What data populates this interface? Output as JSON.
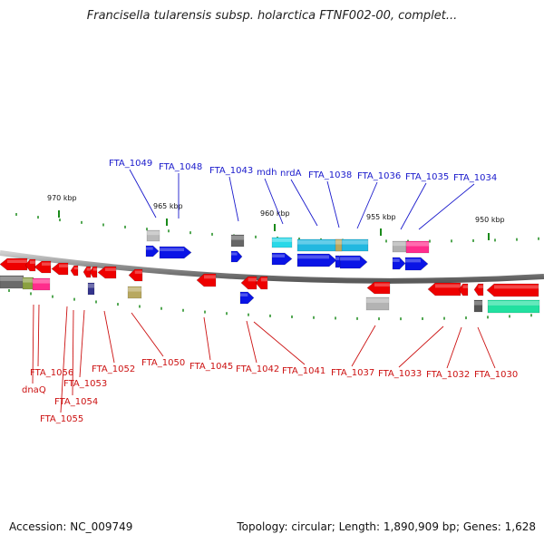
{
  "title": "Francisella tularensis subsp. holarctica FTNF002-00, complet...",
  "footer": {
    "accession": "Accession: NC_009749",
    "summary": "Topology: circular; Length: 1,890,909 bp; Genes: 1,628"
  },
  "colors": {
    "forward_label": "#1a1acc",
    "reverse_label": "#cc1111",
    "forward_gene": "#0a14e6",
    "reverse_gene": "#ee0000",
    "backbone": "#8a8a8a",
    "tick": "#1a8a1a"
  },
  "kbp_labels": [
    "970 kbp",
    "965 kbp",
    "960 kbp",
    "955 kbp",
    "950 kbp"
  ],
  "forward_labels": [
    "FTA_1049",
    "FTA_1048",
    "FTA_1043",
    "mdh",
    "nrdA",
    "FTA_1038",
    "FTA_1036",
    "FTA_1035",
    "FTA_1034"
  ],
  "reverse_labels": [
    "FTA_1056",
    "dnaQ",
    "FTA_1053",
    "FTA_1054",
    "FTA_1055",
    "FTA_1052",
    "FTA_1050",
    "FTA_1045",
    "FTA_1042",
    "FTA_1041",
    "FTA_1037",
    "FTA_1033",
    "FTA_1032",
    "FTA_1030"
  ]
}
